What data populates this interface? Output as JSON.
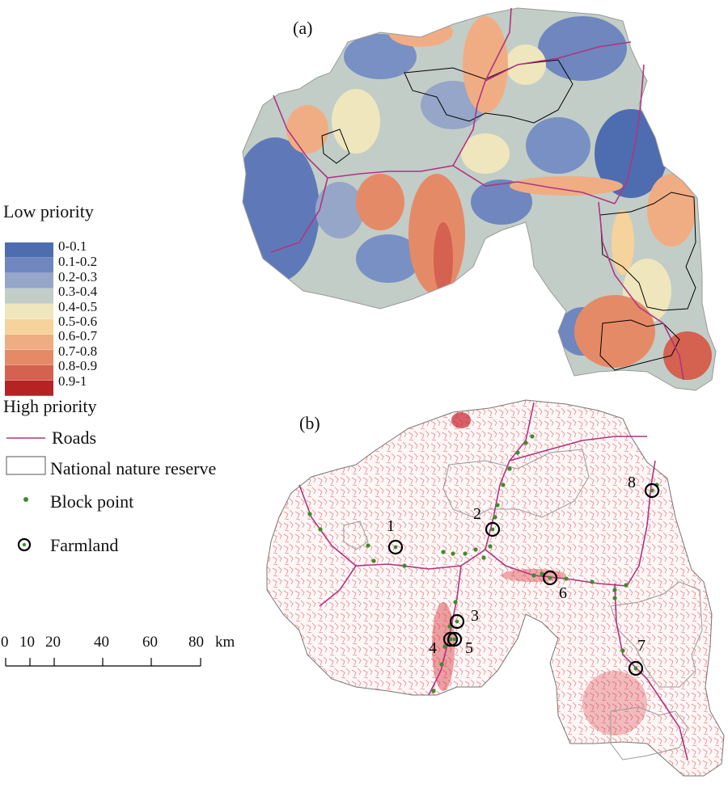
{
  "panels": {
    "a": "(a)",
    "b": "(b)"
  },
  "legend": {
    "low_title": "Low priority",
    "high_title": "High priority",
    "classes": [
      {
        "label": "0-0.1",
        "color": "#4e6cb0"
      },
      {
        "label": "0.1-0.2",
        "color": "#6f86bf"
      },
      {
        "label": "0.2-0.3",
        "color": "#95a6c8"
      },
      {
        "label": "0.3-0.4",
        "color": "#c2cdc8"
      },
      {
        "label": "0.4-0.5",
        "color": "#efe6bd"
      },
      {
        "label": "0.5-0.6",
        "color": "#f6d29c"
      },
      {
        "label": "0.6-0.7",
        "color": "#f0ad83"
      },
      {
        "label": "0.7-0.8",
        "color": "#e58a67"
      },
      {
        "label": "0.8-0.9",
        "color": "#d56150"
      },
      {
        "label": "0.9-1",
        "color": "#b62325"
      }
    ],
    "roads_label": "Roads",
    "reserve_label": "National nature reserve",
    "block_point_label": "Block point",
    "farmland_label": "Farmland",
    "road_color": "#b0357f",
    "block_point_color": "#3f8a2e"
  },
  "scale_bar": {
    "ticks": [
      "0",
      "10",
      "20",
      "40",
      "60",
      "80"
    ],
    "unit": "km"
  },
  "sites": [
    "1",
    "2",
    "3",
    "4",
    "5",
    "6",
    "7",
    "8"
  ]
}
